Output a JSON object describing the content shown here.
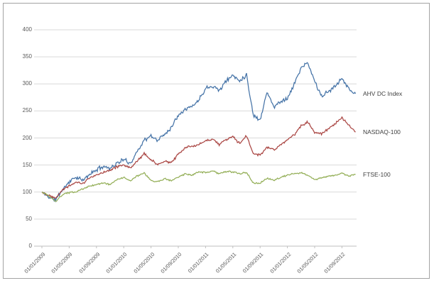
{
  "chart_data": {
    "type": "line",
    "title": "",
    "xlabel": "",
    "ylabel": "",
    "ylim": [
      0,
      400
    ],
    "y_ticks": [
      0,
      50,
      100,
      150,
      200,
      250,
      300,
      350,
      400
    ],
    "x_tick_labels": [
      "01/01/2009",
      "01/05/2009",
      "01/09/2009",
      "01/01/2010",
      "01/05/2010",
      "01/09/2010",
      "01/01/2011",
      "01/05/2011",
      "01/09/2011",
      "01/01/2012",
      "01/05/2012",
      "01/09/2012"
    ],
    "grid": true,
    "legend_position": "right-of-line-end",
    "grid_color": "#d9d9d9",
    "axis_color": "#bfbfbf",
    "tick_label_color": "#595959",
    "series": [
      {
        "name": "AHV DC Index",
        "color": "#4573a7",
        "values_monthly_jan2009_to_nov2012": [
          100,
          91,
          86,
          104,
          119,
          128,
          121,
          133,
          141,
          148,
          144,
          153,
          160,
          153,
          176,
          196,
          203,
          196,
          207,
          220,
          243,
          254,
          258,
          270,
          292,
          297,
          288,
          305,
          316,
          306,
          317,
          242,
          233,
          286,
          257,
          268,
          273,
          299,
          330,
          338,
          305,
          277,
          285,
          296,
          312,
          290,
          282
        ]
      },
      {
        "name": "NASDAQ-100",
        "color": "#aa4643",
        "values_monthly_jan2009_to_nov2012": [
          100,
          94,
          90,
          104,
          112,
          118,
          116,
          126,
          131,
          137,
          141,
          147,
          149,
          145,
          158,
          171,
          160,
          150,
          157,
          154,
          171,
          181,
          185,
          188,
          194,
          199,
          188,
          197,
          202,
          190,
          204,
          171,
          168,
          183,
          178,
          187,
          196,
          206,
          222,
          230,
          211,
          208,
          216,
          226,
          237,
          223,
          211
        ]
      },
      {
        "name": "FTSE-100",
        "color": "#94af58",
        "values_monthly_jan2009_to_nov2012": [
          100,
          93,
          82,
          95,
          99,
          100,
          106,
          111,
          114,
          117,
          114,
          123,
          127,
          121,
          130,
          135,
          121,
          119,
          125,
          121,
          128,
          133,
          131,
          137,
          136,
          139,
          134,
          138,
          137,
          134,
          136,
          117,
          116,
          126,
          122,
          127,
          131,
          134,
          136,
          131,
          123,
          126,
          129,
          131,
          135,
          130,
          133
        ]
      }
    ]
  },
  "frame": {
    "border_color": "#a3a3a3"
  }
}
